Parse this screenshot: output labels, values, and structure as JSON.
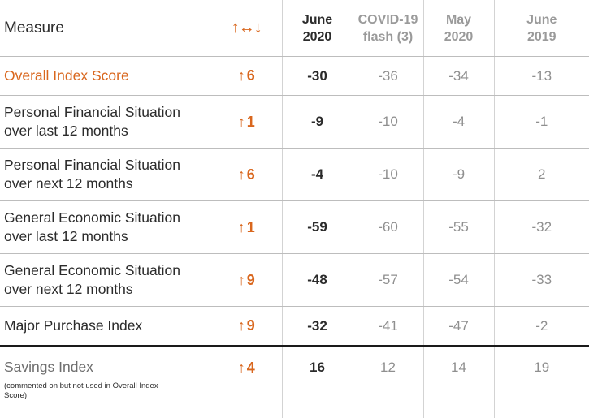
{
  "header": {
    "measure_label": "Measure",
    "change_symbol": "↑↔↓",
    "columns": [
      {
        "line1": "June",
        "line2": "2020"
      },
      {
        "line1": "COVID-19",
        "line2": "flash (3)"
      },
      {
        "line1": "May",
        "line2": "2020"
      },
      {
        "line1": "June",
        "line2": "2019"
      }
    ]
  },
  "rows": [
    {
      "measure": "Overall Index Score",
      "change": "6",
      "values": [
        "-30",
        "-36",
        "-34",
        "-13"
      ]
    },
    {
      "measure": "Personal Financial Situation over last 12 months",
      "change": "1",
      "values": [
        "-9",
        "-10",
        "-4",
        "-1"
      ]
    },
    {
      "measure": "Personal Financial Situation over next 12 months",
      "change": "6",
      "values": [
        "-4",
        "-10",
        "-9",
        "2"
      ]
    },
    {
      "measure": "General Economic Situation over last 12 months",
      "change": "1",
      "values": [
        "-59",
        "-60",
        "-55",
        "-32"
      ]
    },
    {
      "measure": "General Economic Situation over next 12 months",
      "change": "9",
      "values": [
        "-48",
        "-57",
        "-54",
        "-33"
      ]
    },
    {
      "measure": "Major Purchase Index",
      "change": "9",
      "values": [
        "-32",
        "-41",
        "-47",
        "-2"
      ]
    }
  ],
  "savings": {
    "measure": "Savings Index",
    "note": "(commented on but not used in Overall Index Score)",
    "change": "4",
    "values": [
      "16",
      "12",
      "14",
      "19"
    ]
  },
  "arrow_glyph": "↑",
  "colors": {
    "accent": "#d9671e",
    "muted": "#8f8f8f",
    "text": "#2b2b2b"
  }
}
